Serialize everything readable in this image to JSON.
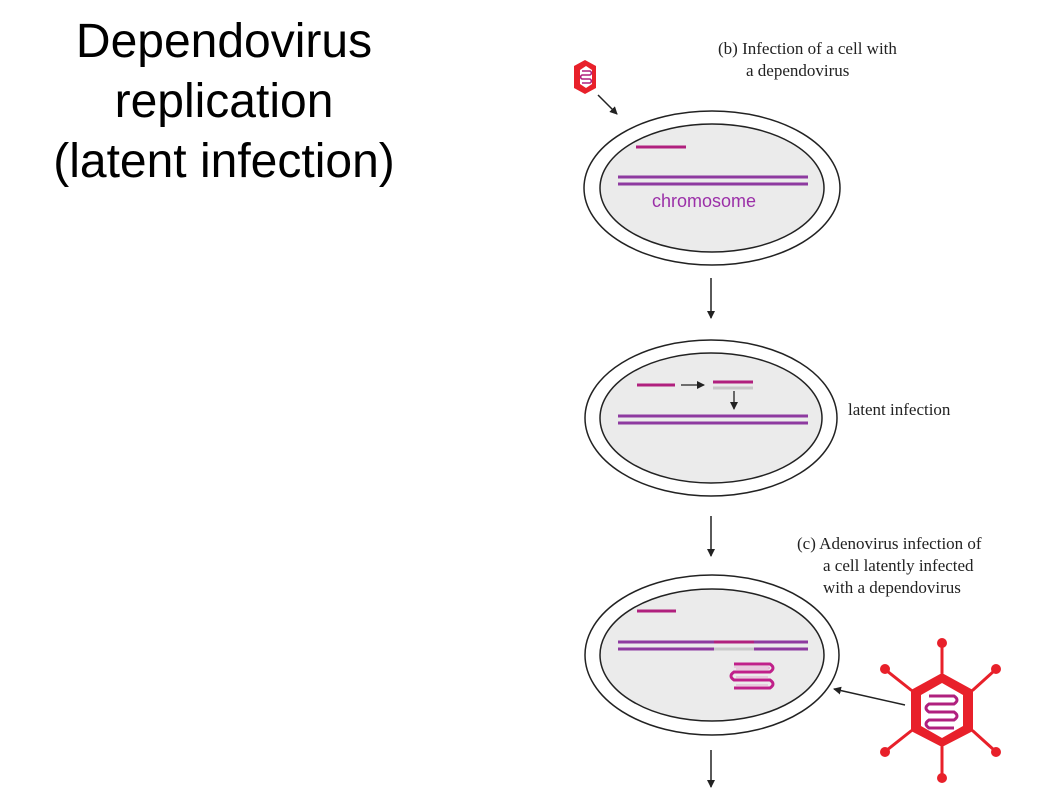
{
  "title": {
    "lines": [
      "Dependovirus",
      "replication",
      "(latent infection)"
    ]
  },
  "labels": {
    "panel_b_line1": "(b) Infection of a cell with",
    "panel_b_line2": "a dependovirus",
    "chromosome": "chromosome",
    "latent_infection": "latent infection",
    "panel_c_line1": "(c) Adenovirus infection of",
    "panel_c_line2": "a cell latently infected",
    "panel_c_line3": "with a dependovirus"
  },
  "colors": {
    "virus_red": "#e8202a",
    "dna_magenta": "#b0207e",
    "chromosome_purple": "#8e3aa0",
    "integrated_grey": "#c8c8c8",
    "cell_fill": "#ebebeb",
    "outline": "#222222"
  }
}
